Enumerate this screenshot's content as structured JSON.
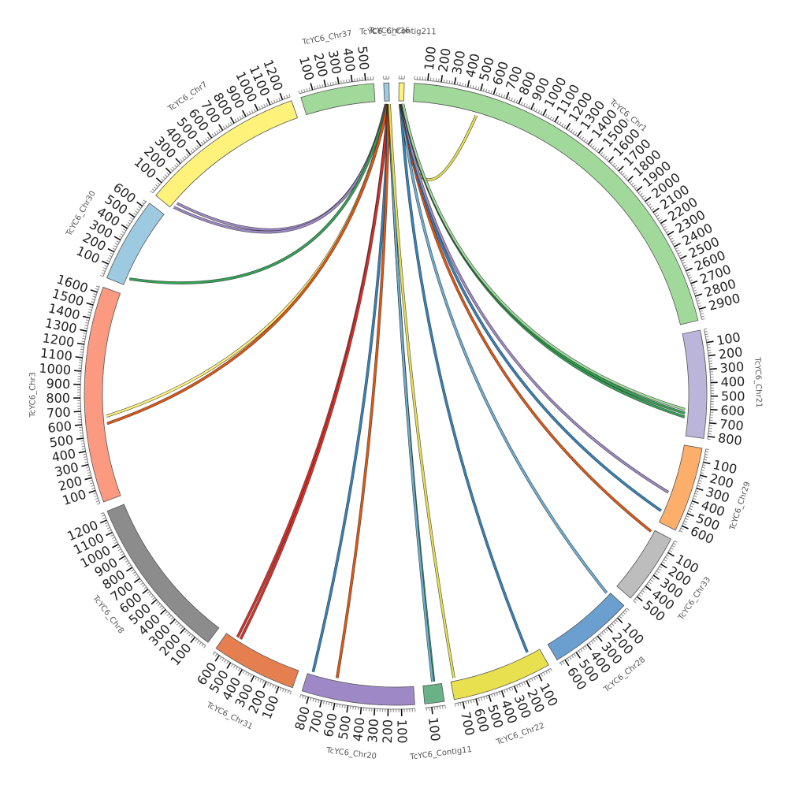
{
  "diagram": {
    "type": "circos",
    "segments": [
      {
        "id": "chr1",
        "name": "TcYC6_Chr1",
        "length": 2980,
        "color": "#a1d99b",
        "label_step": 100
      },
      {
        "id": "chr21",
        "name": "TcYC6_Chr21",
        "length": 820,
        "color": "#bcb5da",
        "label_step": 100
      },
      {
        "id": "chr29",
        "name": "TcYC6_Chr29",
        "length": 650,
        "color": "#fdae6b",
        "label_step": 100
      },
      {
        "id": "chr33",
        "name": "TcYC6_Chr33",
        "length": 540,
        "color": "#bdbdbd",
        "label_step": 100
      },
      {
        "id": "chr28",
        "name": "TcYC6_Chr28",
        "length": 650,
        "color": "#6a9fcf",
        "label_step": 100
      },
      {
        "id": "chr22",
        "name": "TcYC6_Chr22",
        "length": 760,
        "color": "#e8e04f",
        "label_step": 100
      },
      {
        "id": "contig11",
        "name": "TcYC6_Contig11",
        "length": 150,
        "color": "#6ab187",
        "label_step": 100
      },
      {
        "id": "chr20",
        "name": "TcYC6_Chr20",
        "length": 860,
        "color": "#9e89c6",
        "label_step": 100
      },
      {
        "id": "chr31",
        "name": "TcYC6_Chr31",
        "length": 650,
        "color": "#e57f4f",
        "label_step": 100
      },
      {
        "id": "chr8",
        "name": "TcYC6_Chr8",
        "length": 1260,
        "color": "#8c8c8c",
        "label_step": 100
      },
      {
        "id": "chr3",
        "name": "TcYC6_Chr3",
        "length": 1650,
        "color": "#fb9a80",
        "label_step": 100
      },
      {
        "id": "chr30",
        "name": "TcYC6_Chr30",
        "length": 650,
        "color": "#9ecae1",
        "label_step": 100
      },
      {
        "id": "chr7",
        "name": "TcYC6_Chr7",
        "length": 1260,
        "color": "#fff27a",
        "label_step": 100
      },
      {
        "id": "chr37",
        "name": "TcYC6_Chr37",
        "length": 560,
        "color": "#a1d99b",
        "label_step": 100
      },
      {
        "id": "chr36",
        "name": "TcYC6_Chr36",
        "length": 40,
        "color": "#9ecae1",
        "label_step": 100
      },
      {
        "id": "contig211",
        "name": "TcYC6_Contig211",
        "length": 40,
        "color": "#fff27a",
        "label_step": 100
      }
    ],
    "links": [
      {
        "from": "chr36",
        "from_pos": 10,
        "to": "chr7",
        "to_pos": 60,
        "color": "#9e89c6"
      },
      {
        "from": "chr36",
        "from_pos": 15,
        "to": "chr7",
        "to_pos": 20,
        "color": "#9e89c6"
      },
      {
        "from": "chr36",
        "from_pos": 20,
        "to": "chr30",
        "to_pos": 60,
        "color": "#31a354"
      },
      {
        "from": "chr36",
        "from_pos": 25,
        "to": "chr3",
        "to_pos": 650,
        "color": "#fff27a"
      },
      {
        "from": "chr36",
        "from_pos": 28,
        "to": "chr3",
        "to_pos": 590,
        "color": "#e6550d"
      },
      {
        "from": "chr36",
        "from_pos": 30,
        "to": "chr31",
        "to_pos": 560,
        "color": "#de2d26"
      },
      {
        "from": "chr36",
        "from_pos": 32,
        "to": "chr31",
        "to_pos": 530,
        "color": "#de2d26"
      },
      {
        "from": "chr36",
        "from_pos": 33,
        "to": "chr20",
        "to_pos": 820,
        "color": "#3182bd"
      },
      {
        "from": "chr36",
        "from_pos": 34,
        "to": "chr20",
        "to_pos": 620,
        "color": "#e6550d"
      },
      {
        "from": "chr36",
        "from_pos": 36,
        "to": "contig11",
        "to_pos": 60,
        "color": "#31a354"
      },
      {
        "from": "chr36",
        "from_pos": 38,
        "to": "contig11",
        "to_pos": 70,
        "color": "#6baed6"
      },
      {
        "from": "chr36",
        "from_pos": 39,
        "to": "chr22",
        "to_pos": 730,
        "color": "#e8e04f"
      },
      {
        "from": "contig211",
        "from_pos": 10,
        "to": "chr1",
        "to_pos": 520,
        "color": "#e8e04f"
      },
      {
        "from": "contig211",
        "from_pos": 15,
        "to": "chr22",
        "to_pos": 100,
        "color": "#3182bd"
      },
      {
        "from": "contig211",
        "from_pos": 18,
        "to": "chr28",
        "to_pos": 20,
        "color": "#6baed6"
      },
      {
        "from": "contig211",
        "from_pos": 20,
        "to": "chr33",
        "to_pos": 20,
        "color": "#e6550d"
      },
      {
        "from": "contig211",
        "from_pos": 23,
        "to": "chr29",
        "to_pos": 560,
        "color": "#3182bd"
      },
      {
        "from": "contig211",
        "from_pos": 26,
        "to": "chr29",
        "to_pos": 400,
        "color": "#9e89c6"
      },
      {
        "from": "contig211",
        "from_pos": 29,
        "to": "chr21",
        "to_pos": 670,
        "color": "#31a354"
      },
      {
        "from": "contig211",
        "from_pos": 32,
        "to": "chr21",
        "to_pos": 640,
        "color": "#31a354"
      },
      {
        "from": "contig211",
        "from_pos": 34,
        "to": "chr21",
        "to_pos": 610,
        "color": "#a1d99b"
      }
    ]
  }
}
